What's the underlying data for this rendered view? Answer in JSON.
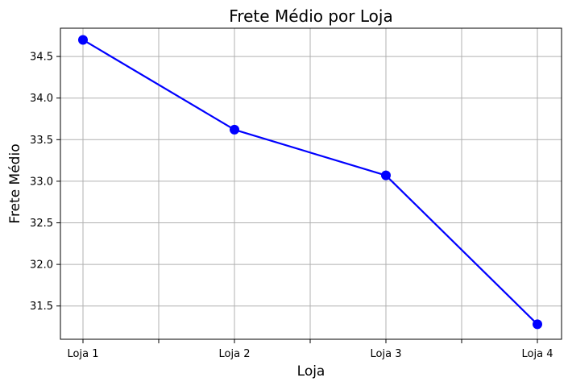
{
  "chart_data": {
    "type": "line",
    "title": "Frete Médio por Loja",
    "xlabel": "Loja",
    "ylabel": "Frete Médio",
    "categories": [
      "Loja 1",
      "Loja 2",
      "Loja 3",
      "Loja 4"
    ],
    "values": [
      34.7,
      33.62,
      33.07,
      31.28
    ],
    "ylim": [
      31.1,
      34.84
    ],
    "yticks": [
      "31.5",
      "32.0",
      "32.5",
      "33.0",
      "33.5",
      "34.0",
      "34.5"
    ],
    "grid": true,
    "line_color": "#0000ff",
    "marker": "circle"
  }
}
